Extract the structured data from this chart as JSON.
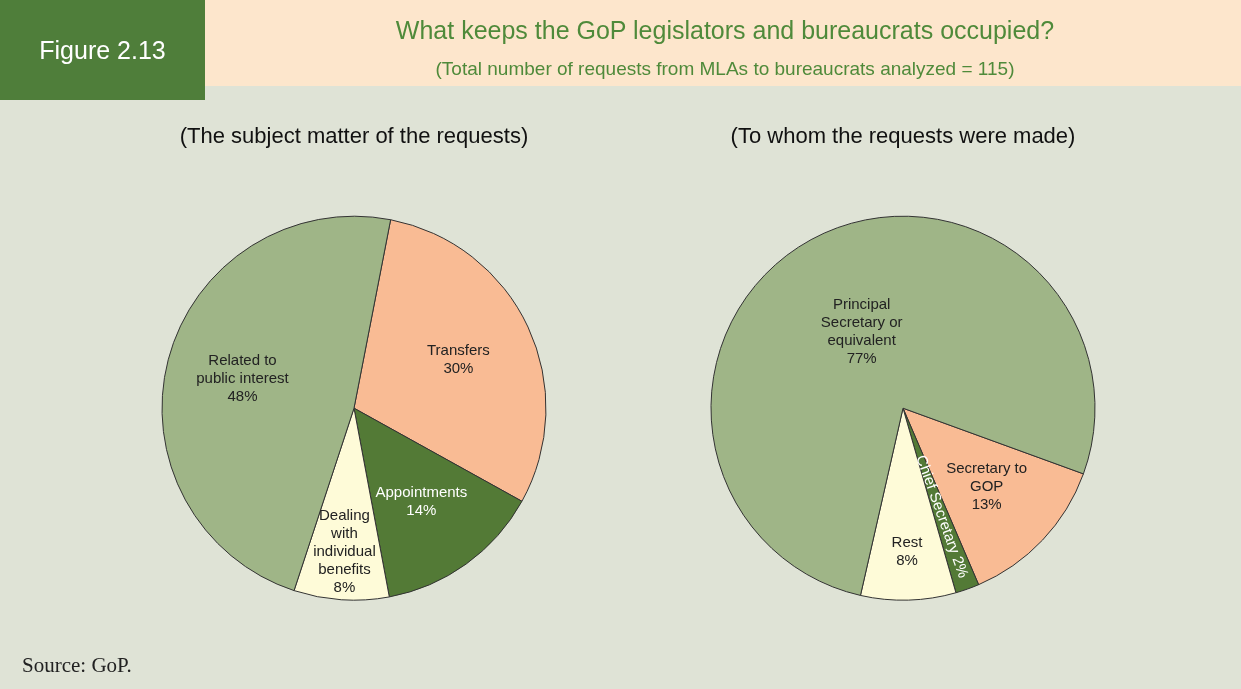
{
  "chart_data": [
    {
      "type": "pie",
      "title": "(The subject matter of the requests)",
      "categories": [
        "Transfers",
        "Appointments",
        "Dealing with individual benefits",
        "Related to public interest"
      ],
      "values": [
        30,
        14,
        8,
        48
      ],
      "value_labels": [
        "30%",
        "14%",
        "8%",
        "48%"
      ],
      "colors": [
        "#f9bb94",
        "#537a36",
        "#fefbd8",
        "#9fb587"
      ],
      "legend": false,
      "annotations": [
        "Figure 2.13",
        "What keeps the GoP legislators and bureaucrats occupied?",
        "(Total number of requests from MLAs to bureaucrats analyzed = 115)",
        "Source: GoP."
      ]
    },
    {
      "type": "pie",
      "title": "(To whom the requests were made)",
      "categories": [
        "Secretary to GOP",
        "Chief Secretary",
        "Rest",
        "Principal Secretary or equivalent"
      ],
      "values": [
        13,
        2,
        8,
        77
      ],
      "value_labels": [
        "13%",
        "2%",
        "8%",
        "77%"
      ],
      "colors": [
        "#f9bb94",
        "#537a36",
        "#fefbd8",
        "#9fb587"
      ],
      "legend": false
    }
  ]
}
